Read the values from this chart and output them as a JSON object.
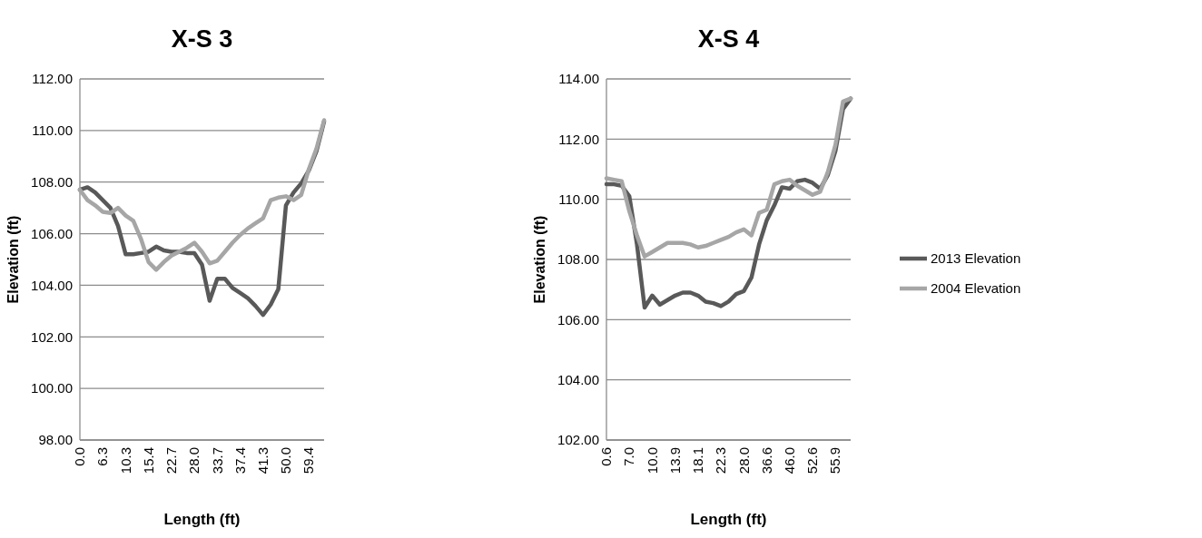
{
  "chart_data": [
    {
      "type": "line",
      "title": "X-S 3",
      "xlabel": "Length (ft)",
      "ylabel": "Elevation (ft)",
      "categories": [
        "0.0",
        null,
        null,
        "6.3",
        null,
        null,
        "10.3",
        null,
        null,
        "15.4",
        null,
        null,
        "22.7",
        null,
        null,
        "28.0",
        null,
        null,
        "33.7",
        null,
        null,
        "37.4",
        null,
        null,
        "41.3",
        null,
        null,
        "50.0",
        null,
        null,
        "59.4",
        null,
        null
      ],
      "ylim": [
        98,
        112
      ],
      "yticks": [
        {
          "value": 98,
          "label": "98.00"
        },
        {
          "value": 100,
          "label": "100.00"
        },
        {
          "value": 102,
          "label": "102.00"
        },
        {
          "value": 104,
          "label": "104.00"
        },
        {
          "value": 106,
          "label": "106.00"
        },
        {
          "value": 108,
          "label": "108.00"
        },
        {
          "value": 110,
          "label": "110.00"
        },
        {
          "value": 112,
          "label": "112.00"
        }
      ],
      "grid": "y",
      "legend": false,
      "marker": "none",
      "line_style": "solid",
      "series": [
        {
          "color": "#595959",
          "values": [
            107.7,
            107.8,
            107.6,
            107.3,
            107.0,
            106.3,
            105.2,
            105.2,
            105.25,
            105.3,
            105.5,
            105.35,
            105.3,
            105.3,
            105.25,
            105.25,
            104.8,
            103.4,
            104.25,
            104.25,
            103.9,
            103.7,
            103.5,
            103.2,
            102.85,
            103.25,
            103.85,
            107.1,
            107.6,
            107.95,
            108.45,
            109.2,
            110.35
          ]
        },
        {
          "color": "#a6a6a6",
          "values": [
            107.7,
            107.3,
            107.1,
            106.85,
            106.8,
            107.0,
            106.7,
            106.5,
            105.8,
            104.9,
            104.6,
            104.9,
            105.15,
            105.3,
            105.45,
            105.65,
            105.3,
            104.85,
            104.95,
            105.3,
            105.65,
            105.95,
            106.2,
            106.4,
            106.6,
            107.3,
            107.4,
            107.45,
            107.3,
            107.5,
            108.5,
            109.3,
            110.4
          ]
        }
      ]
    },
    {
      "type": "line",
      "title": "X-S 4",
      "xlabel": "Length (ft)",
      "ylabel": "Elevation (ft)",
      "categories": [
        "0.6",
        null,
        null,
        "7.0",
        null,
        null,
        "10.0",
        null,
        null,
        "13.9",
        null,
        null,
        "18.1",
        null,
        null,
        "22.3",
        null,
        null,
        "28.0",
        null,
        null,
        "36.6",
        null,
        null,
        "46.0",
        null,
        null,
        "52.6",
        null,
        null,
        "55.9",
        null,
        null
      ],
      "ylim": [
        102,
        114
      ],
      "yticks": [
        {
          "value": 102,
          "label": "102.00"
        },
        {
          "value": 104,
          "label": "104.00"
        },
        {
          "value": 106,
          "label": "106.00"
        },
        {
          "value": 108,
          "label": "108.00"
        },
        {
          "value": 110,
          "label": "110.00"
        },
        {
          "value": 112,
          "label": "112.00"
        },
        {
          "value": 114,
          "label": "114.00"
        }
      ],
      "grid": "y",
      "legend": "right",
      "marker": "none",
      "line_style": "solid",
      "series": [
        {
          "name": "2013 Elevation",
          "color": "#595959",
          "values": [
            110.5,
            110.5,
            110.45,
            110.1,
            108.5,
            106.4,
            106.8,
            106.5,
            106.65,
            106.8,
            106.9,
            106.9,
            106.8,
            106.6,
            106.55,
            106.45,
            106.6,
            106.85,
            106.95,
            107.4,
            108.5,
            109.3,
            109.8,
            110.4,
            110.35,
            110.6,
            110.65,
            110.55,
            110.35,
            110.8,
            111.6,
            113.0,
            113.35
          ]
        },
        {
          "name": "2004 Elevation",
          "color": "#a6a6a6",
          "values": [
            110.7,
            110.65,
            110.6,
            109.6,
            108.8,
            108.1,
            108.25,
            108.4,
            108.55,
            108.55,
            108.55,
            108.5,
            108.4,
            108.45,
            108.55,
            108.65,
            108.75,
            108.9,
            109.0,
            108.8,
            109.55,
            109.65,
            110.5,
            110.6,
            110.65,
            110.45,
            110.3,
            110.15,
            110.25,
            110.9,
            111.8,
            113.25,
            113.35
          ]
        }
      ]
    }
  ]
}
